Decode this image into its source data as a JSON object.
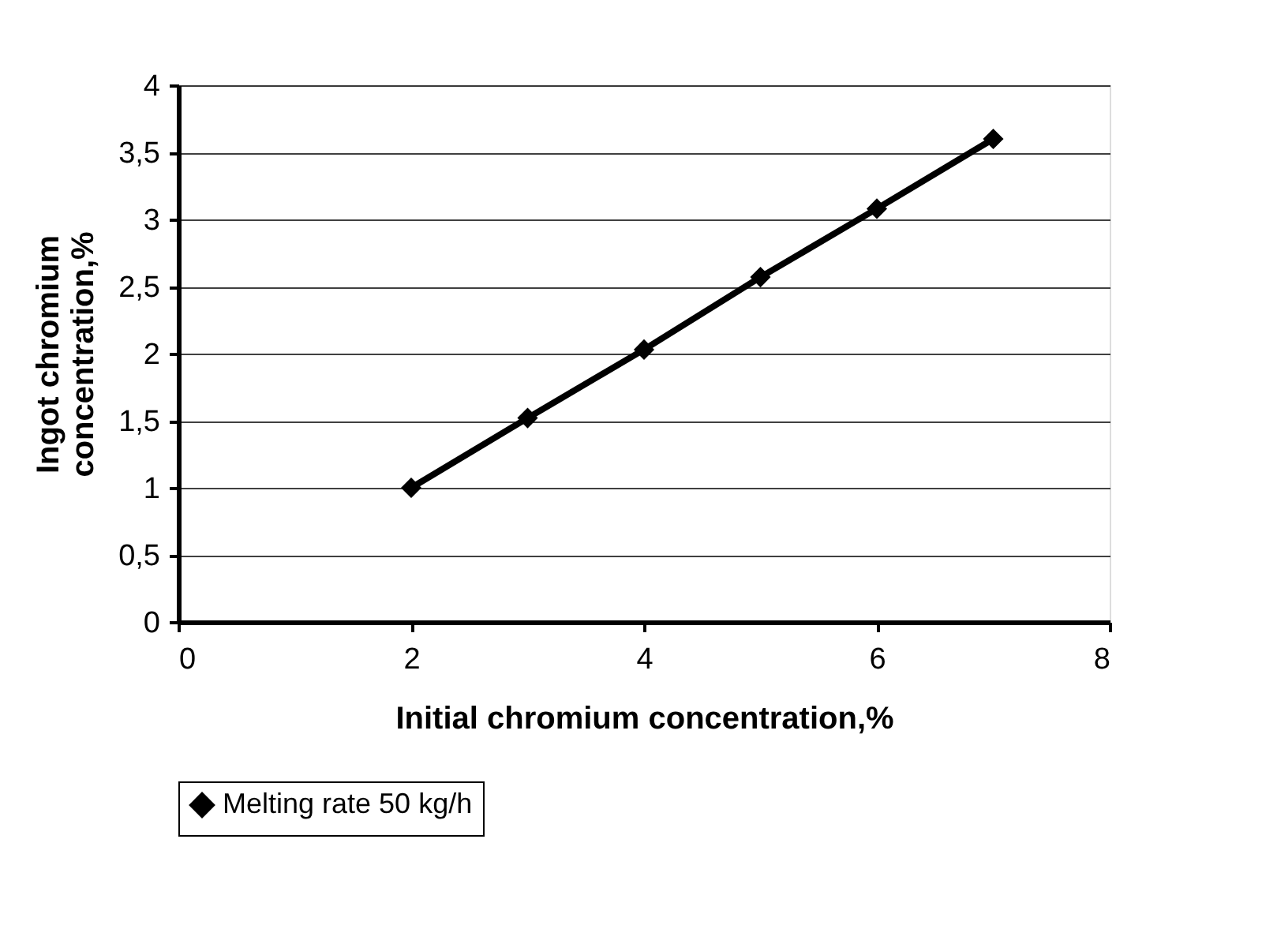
{
  "chart_data": {
    "type": "line",
    "xlabel": "Initial chromium concentration,%",
    "ylabel": "Ingot chromium concentration,%",
    "x": [
      2,
      3,
      4,
      5,
      6,
      7
    ],
    "series": [
      {
        "name": "Melting rate 50 kg/h",
        "color": "#000000",
        "values": [
          1.0,
          1.52,
          2.03,
          2.57,
          3.08,
          3.6
        ]
      }
    ],
    "xlim": [
      0,
      8
    ],
    "xticks": [
      0,
      2,
      4,
      6,
      8
    ],
    "ylim": [
      0,
      4
    ],
    "yticks": [
      0,
      {
        "value": 0.5,
        "label": "0,5"
      },
      1,
      {
        "value": 1.5,
        "label": "1,5"
      },
      2,
      {
        "value": 2.5,
        "label": "2,5"
      },
      3,
      {
        "value": 3.5,
        "label": "3,5"
      },
      4
    ],
    "grid": "y",
    "legend": "bottom",
    "marker": "diamond",
    "line_style": "solid"
  }
}
